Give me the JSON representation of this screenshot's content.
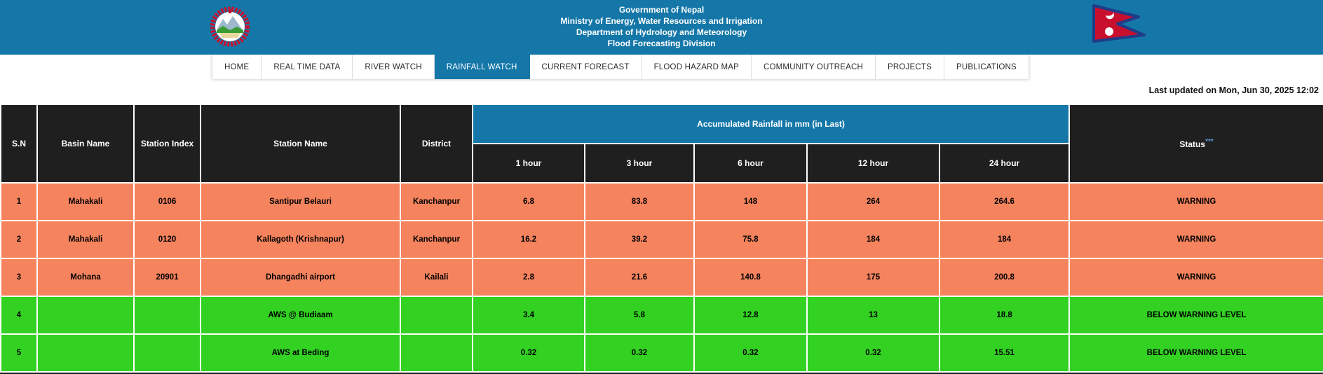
{
  "banner": {
    "bg_color": "#1577A8",
    "lines": [
      "Government of Nepal",
      "Ministry of Energy, Water Resources and Irrigation",
      "Department of Hydrology and Meteorology",
      "Flood Forecasting Division"
    ],
    "emblem_icon": "nepal-government-emblem",
    "flag_icon": "nepal-flag"
  },
  "nav": {
    "items": [
      {
        "label": "HOME",
        "active": false
      },
      {
        "label": "REAL TIME DATA",
        "active": false
      },
      {
        "label": "RIVER WATCH",
        "active": false
      },
      {
        "label": "RAINFALL WATCH",
        "active": true
      },
      {
        "label": "CURRENT FORECAST",
        "active": false
      },
      {
        "label": "FLOOD HAZARD MAP",
        "active": false
      },
      {
        "label": "COMMUNITY OUTREACH",
        "active": false
      },
      {
        "label": "PROJECTS",
        "active": false
      },
      {
        "label": "PUBLICATIONS",
        "active": false
      }
    ]
  },
  "meta": {
    "last_updated": "Last updated on Mon, Jun 30, 2025 12:02"
  },
  "table": {
    "header": {
      "sn": "S.N",
      "basin": "Basin Name",
      "station_index": "Station Index",
      "station_name": "Station Name",
      "district": "District",
      "rainfall_group": "Accumulated Rainfall in mm (in Last)",
      "sub_columns": [
        "1 hour",
        "3 hour",
        "6 hour",
        "12 hour",
        "24 hour"
      ],
      "status_label": "Status",
      "status_superscript": "***"
    },
    "colors": {
      "warning_row": "#F5835D",
      "below_row": "#32D122",
      "header_bg": "#1F1F1F",
      "banner_bg": "#1577A8",
      "status_asterisk": "#5B9BD5"
    },
    "rows": [
      {
        "sn": "1",
        "basin": "Mahakali",
        "station_index": "0106",
        "station_name": "Santipur Belauri",
        "district": "Kanchanpur",
        "rain_1h": "6.8",
        "rain_3h": "83.8",
        "rain_6h": "148",
        "rain_12h": "264",
        "rain_24h": "264.6",
        "status": "WARNING",
        "level": "warning"
      },
      {
        "sn": "2",
        "basin": "Mahakali",
        "station_index": "0120",
        "station_name": "Kallagoth (Krishnapur)",
        "district": "Kanchanpur",
        "rain_1h": "16.2",
        "rain_3h": "39.2",
        "rain_6h": "75.8",
        "rain_12h": "184",
        "rain_24h": "184",
        "status": "WARNING",
        "level": "warning"
      },
      {
        "sn": "3",
        "basin": "Mohana",
        "station_index": "20901",
        "station_name": "Dhangadhi airport",
        "district": "Kailali",
        "rain_1h": "2.8",
        "rain_3h": "21.6",
        "rain_6h": "140.8",
        "rain_12h": "175",
        "rain_24h": "200.8",
        "status": "WARNING",
        "level": "warning"
      },
      {
        "sn": "4",
        "basin": "",
        "station_index": "",
        "station_name": "AWS @ Budiaam",
        "district": "",
        "rain_1h": "3.4",
        "rain_3h": "5.8",
        "rain_6h": "12.8",
        "rain_12h": "13",
        "rain_24h": "18.8",
        "status": "BELOW WARNING LEVEL",
        "level": "below"
      },
      {
        "sn": "5",
        "basin": "",
        "station_index": "",
        "station_name": "AWS at Beding",
        "district": "",
        "rain_1h": "0.32",
        "rain_3h": "0.32",
        "rain_6h": "0.32",
        "rain_12h": "0.32",
        "rain_24h": "15.51",
        "status": "BELOW WARNING LEVEL",
        "level": "below"
      }
    ]
  }
}
